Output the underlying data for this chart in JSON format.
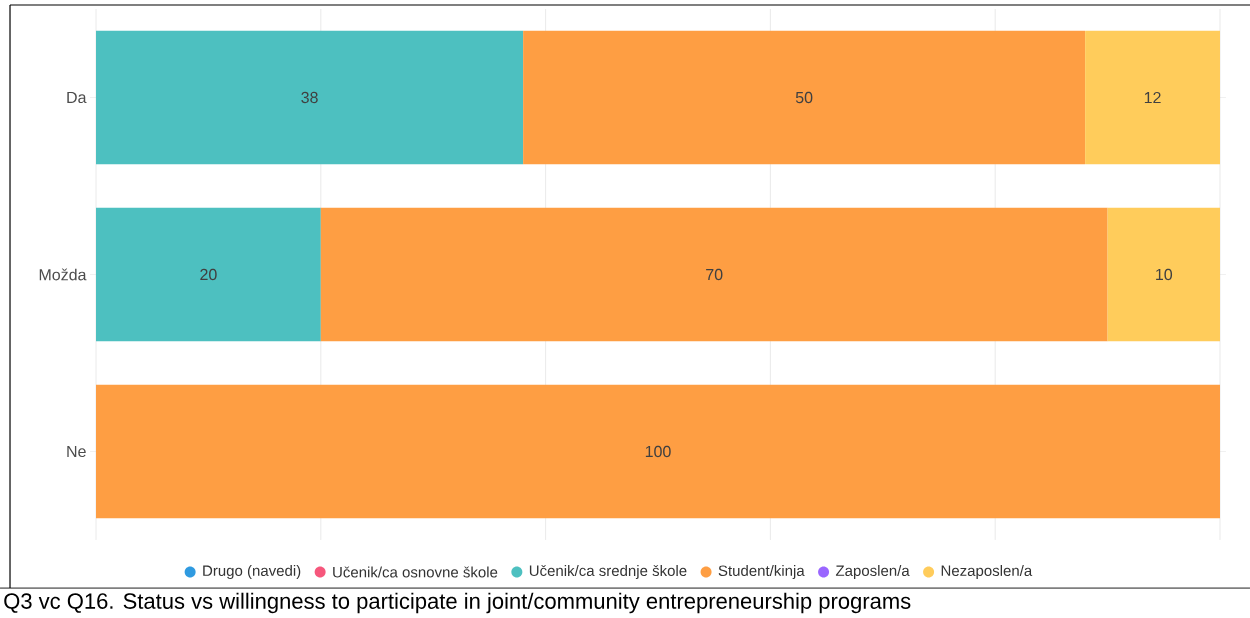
{
  "chart_data": {
    "type": "bar",
    "orientation": "horizontal",
    "stacked": true,
    "title": "Q3 vc Q16. Status vs willingness to participate in joint/community entrepreneurship programs",
    "categories": [
      "Da",
      "Možda",
      "Ne"
    ],
    "series": [
      {
        "name": "Drugo (navedi)",
        "color": "#2f9ae0",
        "values": [
          null,
          null,
          null
        ]
      },
      {
        "name": "Učenik/ca osnovne škole",
        "color": "#f6577c",
        "values": [
          null,
          null,
          null
        ]
      },
      {
        "name": "Učenik/ca srednje škole",
        "color": "#4dc0c0",
        "values": [
          38,
          20,
          null
        ]
      },
      {
        "name": "Student/kinja",
        "color": "#fe9e43",
        "values": [
          50,
          70,
          100
        ]
      },
      {
        "name": "Zaposlen/a",
        "color": "#9a66ff",
        "values": [
          null,
          null,
          null
        ]
      },
      {
        "name": "Nezaposlen/a",
        "color": "#ffcc5b",
        "values": [
          12,
          10,
          null
        ]
      }
    ],
    "xlim": [
      0,
      100
    ],
    "xticks": [
      {
        "value": 0,
        "label": null
      },
      {
        "value": 20,
        "label": null
      },
      {
        "value": 40,
        "label": null
      },
      {
        "value": 60,
        "label": null
      },
      {
        "value": 80,
        "label": null
      },
      {
        "value": 100,
        "label": null
      }
    ],
    "grid": "x",
    "legend": "bottom",
    "tick_labels": "y",
    "data_labels": true
  }
}
